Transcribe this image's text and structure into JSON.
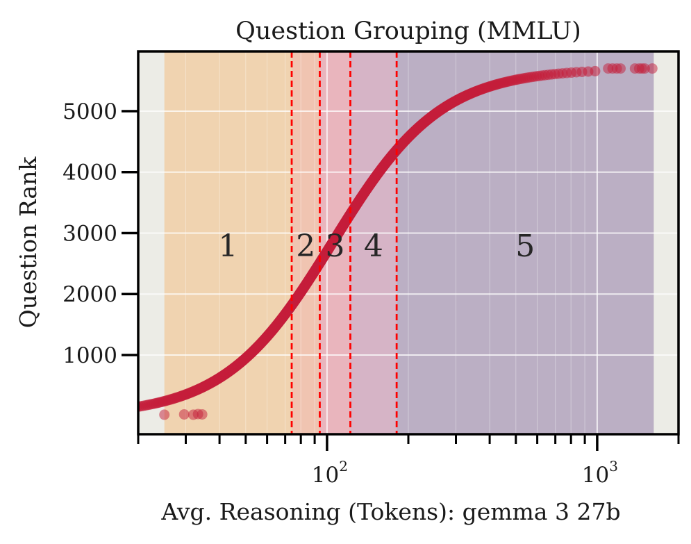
{
  "chart_data": {
    "type": "scatter",
    "title": "Question Grouping (MMLU)",
    "xlabel": "Avg. Reasoning (Tokens): gemma 3 27b",
    "ylabel": "Question Rank",
    "xscale": "log",
    "xlim": [
      20,
      2000
    ],
    "ylim": [
      -300,
      5980
    ],
    "x_tick_labels": [
      {
        "value": 100,
        "base": "10",
        "exp": "2"
      },
      {
        "value": 1000,
        "base": "10",
        "exp": "3"
      }
    ],
    "y_ticks": [
      1000,
      2000,
      3000,
      4000,
      5000
    ],
    "y_tick_labels": [
      "1000",
      "2000",
      "3000",
      "4000",
      "5000"
    ],
    "grid": true,
    "background": "#ecece6",
    "point_color": "#c41e3a",
    "thresholds": [
      74,
      94,
      122,
      181
    ],
    "threshold_color": "#ff0000",
    "groups": [
      {
        "label": "1",
        "x_range": [
          25,
          74
        ],
        "color": "#f0d2ad"
      },
      {
        "label": "2",
        "x_range": [
          74,
          94
        ],
        "color": "#f0c2ae"
      },
      {
        "label": "3",
        "x_range": [
          94,
          122
        ],
        "color": "#e9b2bb"
      },
      {
        "label": "4",
        "x_range": [
          122,
          181
        ],
        "color": "#d5b1c4"
      },
      {
        "label": "5",
        "x_range": [
          181,
          1620
        ],
        "color": "#b8acc2"
      }
    ],
    "group_label_y": 2800,
    "curve": {
      "n": 5700,
      "x_median": 105,
      "log_spread": 0.2
    },
    "points": [
      [
        25,
        20
      ],
      [
        29.6,
        25
      ],
      [
        32,
        20
      ],
      [
        33.3,
        30
      ],
      [
        34.5,
        25
      ],
      [
        1098,
        5700
      ],
      [
        1140,
        5700
      ],
      [
        1182,
        5700
      ],
      [
        1220,
        5700
      ],
      [
        1380,
        5700
      ],
      [
        1430,
        5700
      ],
      [
        1465,
        5700
      ],
      [
        1500,
        5700
      ],
      [
        1600,
        5700
      ]
    ]
  }
}
